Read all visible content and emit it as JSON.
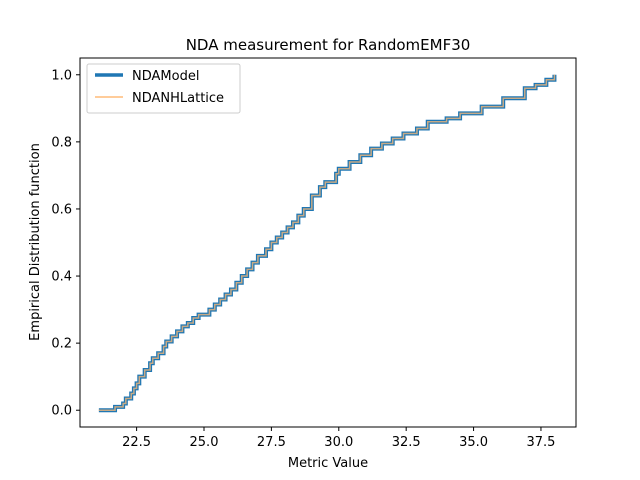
{
  "chart_data": {
    "type": "line",
    "title": "NDA measurement for RandomEMF30",
    "xlabel": "Metric Value",
    "ylabel": "Empirical Distribution function",
    "xlim": [
      20.4,
      38.8
    ],
    "ylim": [
      -0.05,
      1.05
    ],
    "xticks": [
      "22.5",
      "25.0",
      "27.5",
      "30.0",
      "32.5",
      "35.0",
      "37.5"
    ],
    "yticks": [
      "0.0",
      "0.2",
      "0.4",
      "0.6",
      "0.8",
      "1.0"
    ],
    "legend_position": "top-left",
    "series": [
      {
        "name": "NDAModel",
        "color": "#1f77b4",
        "style": "steps-post",
        "x": [
          21.1,
          21.7,
          22.0,
          22.1,
          22.3,
          22.4,
          22.5,
          22.6,
          22.8,
          23.0,
          23.1,
          23.3,
          23.5,
          23.6,
          23.8,
          24.0,
          24.2,
          24.4,
          24.6,
          24.8,
          25.2,
          25.4,
          25.6,
          25.8,
          26.0,
          26.2,
          26.4,
          26.6,
          26.8,
          27.0,
          27.3,
          27.5,
          27.7,
          27.9,
          28.1,
          28.3,
          28.5,
          28.7,
          29.0,
          29.3,
          29.5,
          29.9,
          30.0,
          30.4,
          30.8,
          31.2,
          31.6,
          32.0,
          32.4,
          32.9,
          33.3,
          34.0,
          34.5,
          35.3,
          36.1,
          36.9,
          37.3,
          37.7,
          38.0
        ],
        "y": [
          0.0,
          0.01,
          0.02,
          0.035,
          0.05,
          0.065,
          0.08,
          0.1,
          0.12,
          0.14,
          0.155,
          0.17,
          0.19,
          0.205,
          0.22,
          0.235,
          0.25,
          0.26,
          0.275,
          0.285,
          0.3,
          0.315,
          0.33,
          0.345,
          0.36,
          0.38,
          0.4,
          0.42,
          0.44,
          0.46,
          0.48,
          0.5,
          0.515,
          0.53,
          0.545,
          0.56,
          0.58,
          0.6,
          0.64,
          0.665,
          0.68,
          0.705,
          0.72,
          0.74,
          0.76,
          0.78,
          0.795,
          0.81,
          0.825,
          0.84,
          0.86,
          0.87,
          0.885,
          0.905,
          0.93,
          0.96,
          0.97,
          0.985,
          1.0
        ]
      },
      {
        "name": "NDANHLattice",
        "color": "#ffbb78",
        "style": "steps-post",
        "x": [
          21.1,
          21.7,
          22.0,
          22.1,
          22.3,
          22.4,
          22.5,
          22.6,
          22.8,
          23.0,
          23.1,
          23.3,
          23.5,
          23.6,
          23.8,
          24.0,
          24.2,
          24.4,
          24.6,
          24.8,
          25.2,
          25.4,
          25.6,
          25.8,
          26.0,
          26.2,
          26.4,
          26.6,
          26.8,
          27.0,
          27.3,
          27.5,
          27.7,
          27.9,
          28.1,
          28.3,
          28.5,
          28.7,
          29.0,
          29.3,
          29.5,
          29.9,
          30.0,
          30.4,
          30.8,
          31.2,
          31.6,
          32.0,
          32.4,
          32.9,
          33.3,
          34.0,
          34.5,
          35.3,
          36.1,
          36.9,
          37.3,
          37.7,
          38.0
        ],
        "y": [
          0.0,
          0.01,
          0.02,
          0.035,
          0.05,
          0.065,
          0.08,
          0.1,
          0.12,
          0.14,
          0.155,
          0.17,
          0.19,
          0.205,
          0.22,
          0.235,
          0.25,
          0.26,
          0.275,
          0.285,
          0.3,
          0.315,
          0.33,
          0.345,
          0.36,
          0.38,
          0.4,
          0.42,
          0.44,
          0.46,
          0.48,
          0.5,
          0.515,
          0.53,
          0.545,
          0.56,
          0.58,
          0.6,
          0.64,
          0.665,
          0.68,
          0.705,
          0.72,
          0.74,
          0.76,
          0.78,
          0.795,
          0.81,
          0.825,
          0.84,
          0.86,
          0.87,
          0.885,
          0.905,
          0.93,
          0.96,
          0.97,
          0.985,
          1.0
        ]
      }
    ]
  }
}
